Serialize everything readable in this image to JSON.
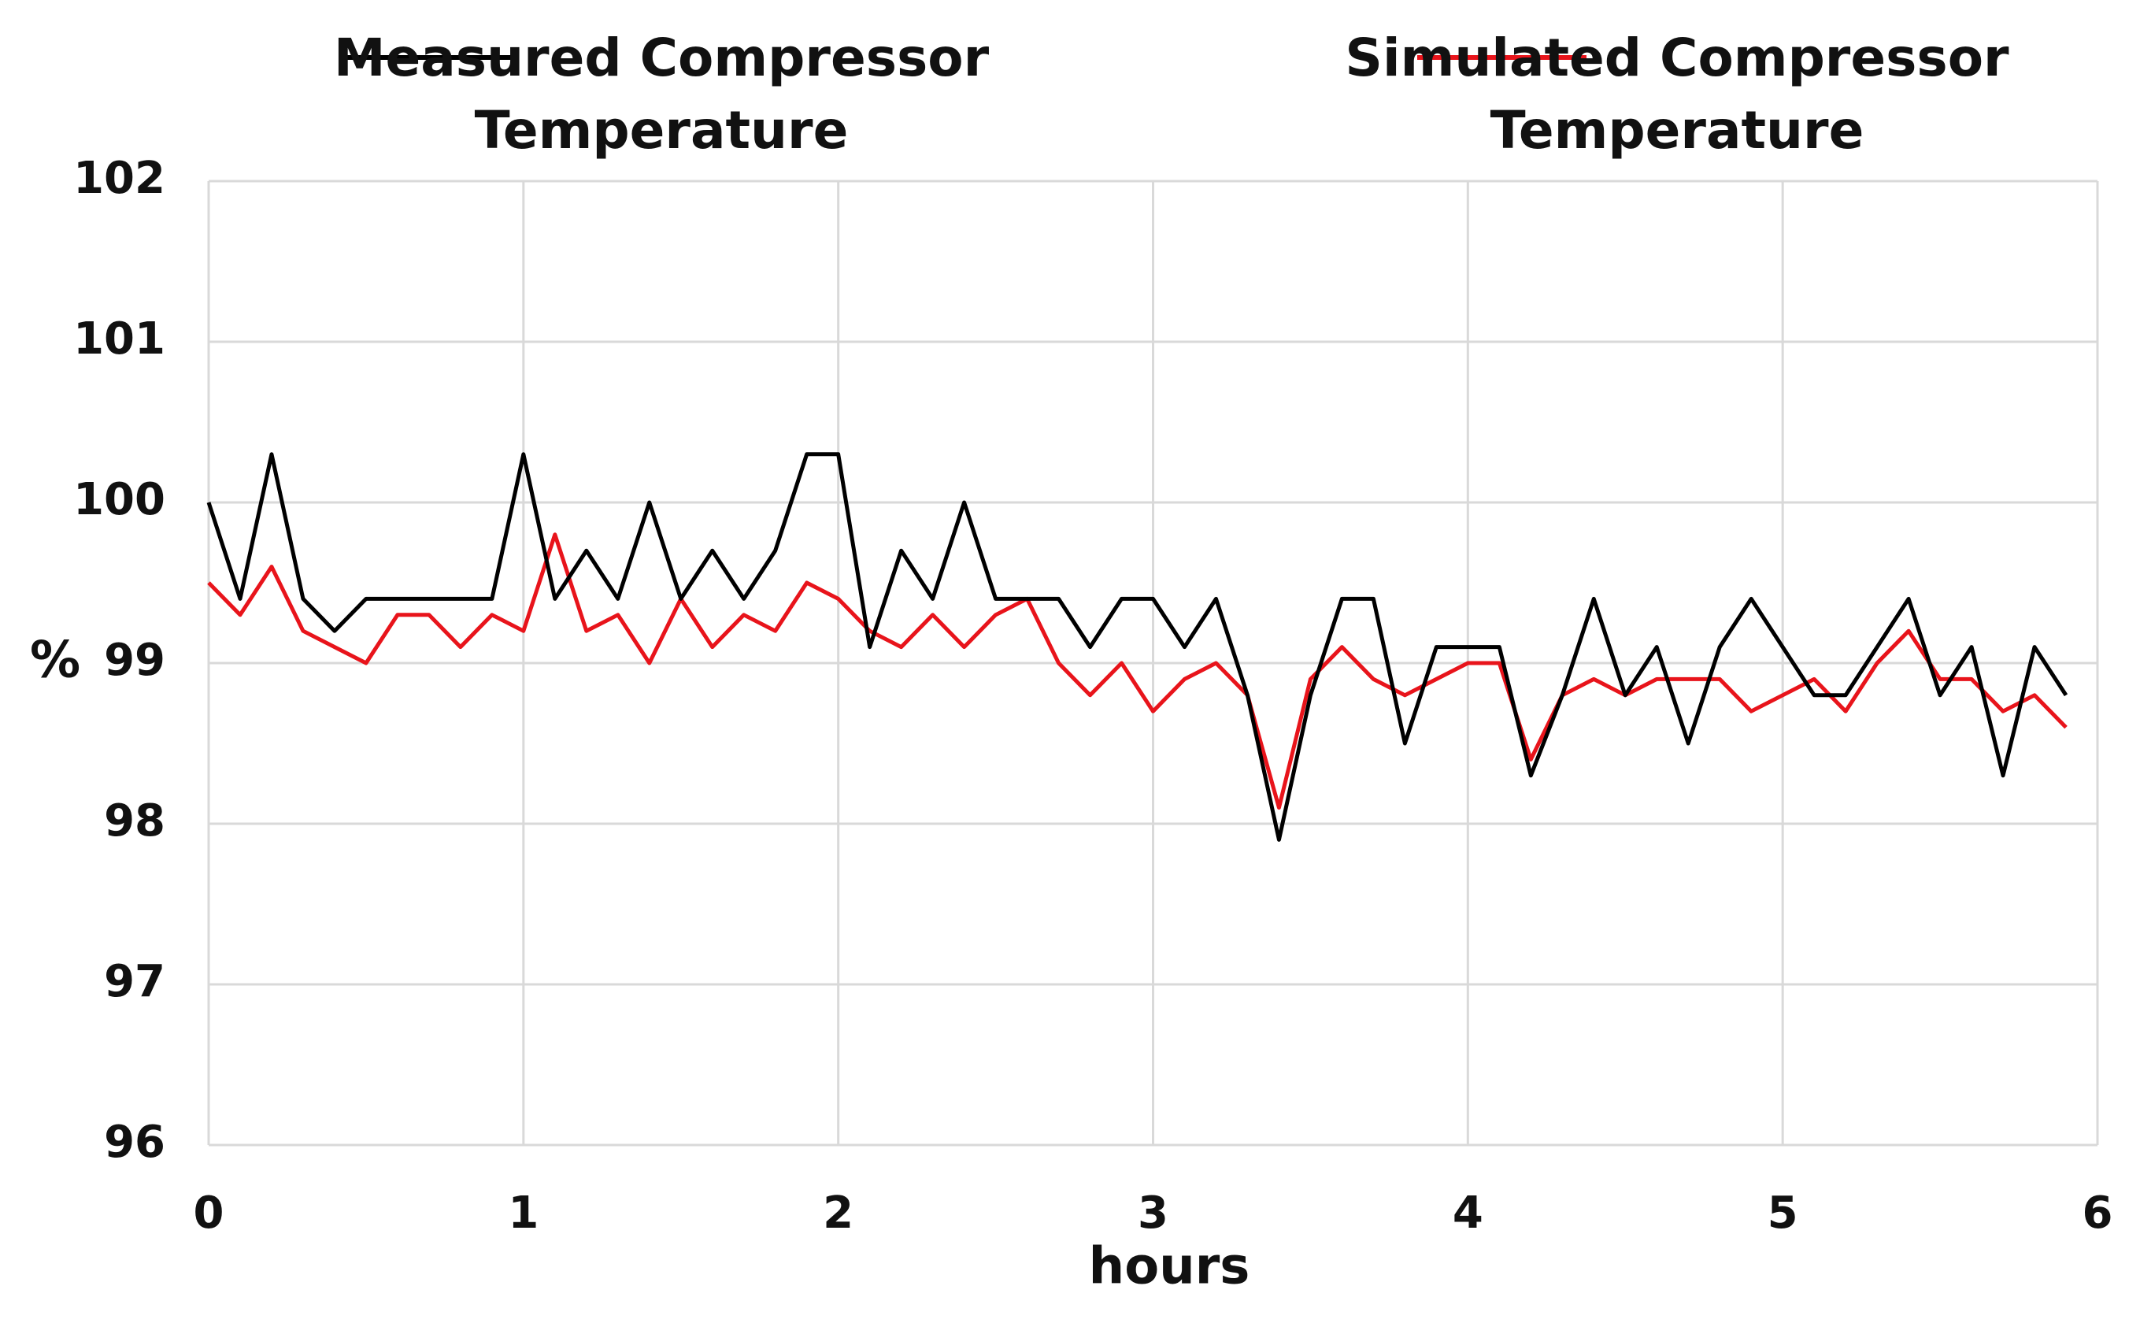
{
  "chart_data": {
    "type": "line",
    "xlabel": "hours",
    "ylabel": "%",
    "x": [
      0,
      0.1,
      0.2,
      0.3,
      0.4,
      0.5,
      0.6,
      0.7,
      0.8,
      0.9,
      1,
      1.1,
      1.2,
      1.3,
      1.4,
      1.5,
      1.6,
      1.7,
      1.8,
      1.9,
      2,
      2.1,
      2.2,
      2.3,
      2.4,
      2.5,
      2.6,
      2.7,
      2.8,
      2.9,
      3,
      3.1,
      3.2,
      3.3,
      3.4,
      3.5,
      3.6,
      3.7,
      3.8,
      3.9,
      4,
      4.1,
      4.2,
      4.3,
      4.4,
      4.5,
      4.6,
      4.7,
      4.8,
      4.9,
      5,
      5.1,
      5.2,
      5.3,
      5.4,
      5.5,
      5.6,
      5.7,
      5.8,
      5.9
    ],
    "series": [
      {
        "name": "Measured Compressor Temperature",
        "color": "#000000",
        "values": [
          100.0,
          99.4,
          100.3,
          99.4,
          99.2,
          99.4,
          99.4,
          99.4,
          99.4,
          99.4,
          100.3,
          99.4,
          99.7,
          99.4,
          100.0,
          99.4,
          99.7,
          99.4,
          99.7,
          100.3,
          100.3,
          99.1,
          99.7,
          99.4,
          100.0,
          99.4,
          99.4,
          99.4,
          99.1,
          99.4,
          99.4,
          99.1,
          99.4,
          98.8,
          97.9,
          98.8,
          99.4,
          99.4,
          98.5,
          99.1,
          99.1,
          99.1,
          98.3,
          98.8,
          99.4,
          98.8,
          99.1,
          98.5,
          99.1,
          99.4,
          99.1,
          98.8,
          98.8,
          99.1,
          99.4,
          98.8,
          99.1,
          98.3,
          99.1,
          98.8
        ]
      },
      {
        "name": "Simulated Compressor Temperature",
        "color": "#e8141b",
        "values": [
          99.5,
          99.3,
          99.6,
          99.2,
          99.1,
          99.0,
          99.3,
          99.3,
          99.1,
          99.3,
          99.2,
          99.8,
          99.2,
          99.3,
          99.0,
          99.4,
          99.1,
          99.3,
          99.2,
          99.5,
          99.4,
          99.2,
          99.1,
          99.3,
          99.1,
          99.3,
          99.4,
          99.0,
          98.8,
          99.0,
          98.7,
          98.9,
          99.0,
          98.8,
          98.1,
          98.9,
          99.1,
          98.9,
          98.8,
          98.9,
          99.0,
          99.0,
          98.4,
          98.8,
          98.9,
          98.8,
          98.9,
          98.9,
          98.9,
          98.7,
          98.8,
          98.9,
          98.7,
          99.0,
          99.2,
          98.9,
          98.9,
          98.7,
          98.8,
          98.6
        ]
      }
    ],
    "xlim": [
      0,
      6
    ],
    "xticks": [
      0,
      1,
      2,
      3,
      4,
      5,
      6
    ],
    "ylim": [
      96,
      102
    ],
    "yticks": [
      96,
      97,
      98,
      99,
      100,
      101,
      102
    ],
    "grid": true
  }
}
